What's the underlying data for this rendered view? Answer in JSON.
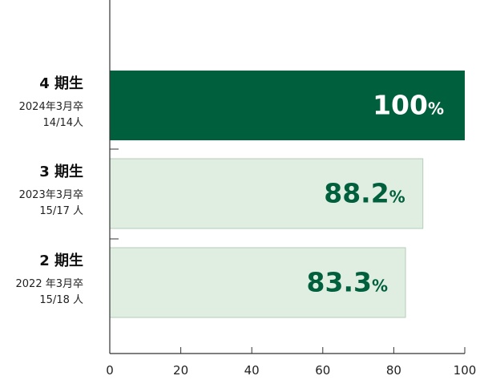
{
  "chart_data": {
    "type": "bar",
    "orientation": "horizontal",
    "categories": [
      {
        "name": "4 期生",
        "lines": [
          "2024年3月卒",
          "14/14人"
        ]
      },
      {
        "name": "3 期生",
        "lines": [
          "2023年3月卒",
          "15/17 人"
        ]
      },
      {
        "name": "2 期生",
        "lines": [
          "2022 年3月卒",
          "15/18 人"
        ]
      }
    ],
    "values": [
      100,
      88.2,
      83.3
    ],
    "value_labels": [
      "100",
      "88.2",
      "83.3"
    ],
    "unit": "%",
    "xlim": [
      0,
      100
    ],
    "xticks": [
      "0",
      "20",
      "40",
      "60",
      "80",
      "100"
    ],
    "title": "",
    "xlabel": "",
    "ylabel": "",
    "grid": false,
    "legend": "none",
    "colors": {
      "highlight_bar": "#005f3c",
      "bar": "#dfeee0",
      "bar_border": "#b5ccb9",
      "highlight_label": "#ffffff",
      "label": "#005f3c",
      "axis": "#333333"
    }
  }
}
